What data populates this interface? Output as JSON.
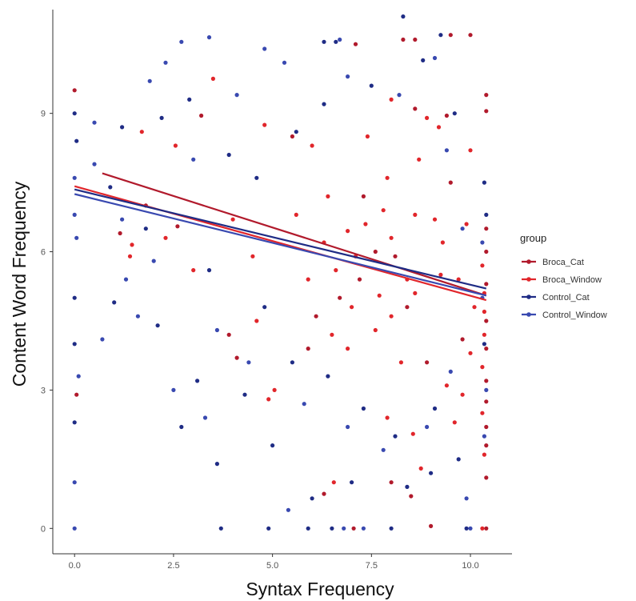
{
  "chart_data": {
    "type": "scatter",
    "title": "",
    "xlabel": "Syntax Frequency",
    "ylabel": "Content Word Frequency",
    "xlim": [
      -0.55,
      11.05
    ],
    "ylim": [
      -0.55,
      11.25
    ],
    "x_ticks": [
      "0.0",
      "2.5",
      "5.0",
      "7.5",
      "10.0"
    ],
    "y_ticks": [
      "0",
      "3",
      "6",
      "9"
    ],
    "grid": false,
    "legend": {
      "title": "group",
      "placement": "right"
    },
    "series": [
      {
        "name": "Broca_Cat",
        "color": "#b11a2c",
        "fit": {
          "x": [
            0.7,
            10.4
          ],
          "y": [
            7.7,
            5.05
          ]
        },
        "points": [
          [
            8.6,
            10.6
          ],
          [
            9.5,
            10.7
          ],
          [
            10.0,
            10.7
          ],
          [
            7.1,
            10.5
          ],
          [
            8.3,
            10.6
          ],
          [
            10.4,
            9.4
          ],
          [
            10.4,
            9.05
          ],
          [
            9.4,
            8.95
          ],
          [
            8.6,
            9.1
          ],
          [
            5.5,
            8.5
          ],
          [
            3.2,
            8.95
          ],
          [
            10.4,
            6.5
          ],
          [
            10.4,
            6.0
          ],
          [
            10.4,
            5.3
          ],
          [
            10.4,
            4.5
          ],
          [
            10.4,
            3.9
          ],
          [
            10.4,
            3.2
          ],
          [
            10.4,
            2.75
          ],
          [
            10.4,
            2.2
          ],
          [
            10.4,
            1.8
          ],
          [
            10.4,
            0.0
          ],
          [
            10.4,
            1.1
          ],
          [
            9.0,
            0.05
          ],
          [
            8.5,
            0.7
          ],
          [
            6.3,
            0.75
          ],
          [
            5.9,
            3.9
          ],
          [
            3.9,
            4.2
          ],
          [
            4.1,
            3.7
          ],
          [
            7.05,
            0.0
          ],
          [
            8.0,
            1.0
          ],
          [
            1.15,
            6.4
          ],
          [
            1.8,
            7.0
          ],
          [
            0.05,
            2.9
          ],
          [
            0.0,
            9.5
          ],
          [
            2.6,
            6.55
          ],
          [
            7.6,
            6.0
          ],
          [
            7.2,
            5.4
          ],
          [
            8.4,
            4.8
          ],
          [
            6.7,
            5.0
          ],
          [
            9.5,
            7.5
          ],
          [
            8.9,
            3.6
          ],
          [
            7.3,
            7.2
          ],
          [
            6.1,
            4.6
          ],
          [
            8.1,
            5.9
          ],
          [
            9.8,
            4.1
          ]
        ]
      },
      {
        "name": "Broca_Window",
        "color": "#e1262b",
        "fit": {
          "x": [
            0.0,
            10.4
          ],
          "y": [
            7.42,
            4.95
          ]
        },
        "points": [
          [
            3.5,
            9.75
          ],
          [
            4.8,
            8.75
          ],
          [
            1.7,
            8.6
          ],
          [
            2.55,
            8.3
          ],
          [
            1.4,
            5.9
          ],
          [
            1.45,
            6.15
          ],
          [
            5.6,
            6.8
          ],
          [
            8.9,
            8.9
          ],
          [
            9.2,
            8.7
          ],
          [
            6.3,
            6.2
          ],
          [
            7.1,
            5.9
          ],
          [
            6.9,
            6.45
          ],
          [
            8.0,
            6.3
          ],
          [
            8.6,
            5.1
          ],
          [
            9.25,
            5.5
          ],
          [
            10.3,
            5.7
          ],
          [
            10.35,
            5.1
          ],
          [
            10.35,
            4.7
          ],
          [
            10.35,
            4.2
          ],
          [
            10.3,
            3.5
          ],
          [
            10.3,
            2.5
          ],
          [
            10.35,
            1.6
          ],
          [
            10.3,
            0.0
          ],
          [
            5.05,
            3.0
          ],
          [
            4.9,
            2.8
          ],
          [
            4.6,
            4.5
          ],
          [
            6.9,
            3.9
          ],
          [
            7.6,
            4.3
          ],
          [
            8.0,
            4.6
          ],
          [
            8.4,
            5.4
          ],
          [
            9.6,
            2.3
          ],
          [
            10.1,
            4.8
          ],
          [
            6.4,
            7.2
          ],
          [
            7.9,
            7.6
          ],
          [
            8.7,
            8.0
          ],
          [
            10.0,
            8.2
          ],
          [
            9.9,
            6.6
          ],
          [
            9.1,
            6.7
          ],
          [
            5.9,
            5.4
          ],
          [
            6.6,
            5.6
          ],
          [
            7.35,
            6.6
          ],
          [
            7.7,
            5.05
          ],
          [
            8.25,
            3.6
          ],
          [
            8.55,
            2.05
          ],
          [
            9.4,
            3.1
          ],
          [
            9.8,
            2.9
          ],
          [
            3.0,
            5.6
          ],
          [
            2.3,
            6.3
          ],
          [
            4.0,
            6.7
          ],
          [
            4.5,
            5.9
          ],
          [
            6.5,
            4.2
          ],
          [
            7.0,
            4.8
          ],
          [
            7.8,
            6.9
          ],
          [
            8.6,
            6.8
          ],
          [
            9.3,
            6.2
          ],
          [
            9.7,
            5.4
          ],
          [
            10.0,
            3.8
          ],
          [
            6.0,
            8.3
          ],
          [
            7.4,
            8.5
          ],
          [
            8.0,
            9.3
          ],
          [
            6.55,
            1.0
          ],
          [
            7.9,
            2.4
          ],
          [
            8.75,
            1.3
          ]
        ]
      },
      {
        "name": "Control_Cat",
        "color": "#1f2c85",
        "fit": {
          "x": [
            0.0,
            10.4
          ],
          "y": [
            7.35,
            5.2
          ]
        },
        "points": [
          [
            8.3,
            11.1
          ],
          [
            6.3,
            10.55
          ],
          [
            6.6,
            10.55
          ],
          [
            9.25,
            10.7
          ],
          [
            3.7,
            0.0
          ],
          [
            4.9,
            0.0
          ],
          [
            5.9,
            0.0
          ],
          [
            6.5,
            0.0
          ],
          [
            8.0,
            0.0
          ],
          [
            9.9,
            0.0
          ],
          [
            3.6,
            1.4
          ],
          [
            2.7,
            2.2
          ],
          [
            0.0,
            2.3
          ],
          [
            0.05,
            8.4
          ],
          [
            0.0,
            9.0
          ],
          [
            0.0,
            5.0
          ],
          [
            0.0,
            4.0
          ],
          [
            1.0,
            4.9
          ],
          [
            2.1,
            4.4
          ],
          [
            3.1,
            3.2
          ],
          [
            4.3,
            2.9
          ],
          [
            5.0,
            1.8
          ],
          [
            6.0,
            0.65
          ],
          [
            7.0,
            1.0
          ],
          [
            8.4,
            0.9
          ],
          [
            9.0,
            1.2
          ],
          [
            9.7,
            1.5
          ],
          [
            1.2,
            8.7
          ],
          [
            2.2,
            8.9
          ],
          [
            2.9,
            9.3
          ],
          [
            3.9,
            8.1
          ],
          [
            4.6,
            7.6
          ],
          [
            5.6,
            8.6
          ],
          [
            6.3,
            9.2
          ],
          [
            7.5,
            9.6
          ],
          [
            8.8,
            10.15
          ],
          [
            9.6,
            9.0
          ],
          [
            10.35,
            7.5
          ],
          [
            10.4,
            6.8
          ],
          [
            10.35,
            4.0
          ],
          [
            9.1,
            2.6
          ],
          [
            8.1,
            2.0
          ],
          [
            7.3,
            2.6
          ],
          [
            6.4,
            3.3
          ],
          [
            5.5,
            3.6
          ],
          [
            4.8,
            4.8
          ],
          [
            3.4,
            5.6
          ],
          [
            1.8,
            6.5
          ],
          [
            0.9,
            7.4
          ]
        ]
      },
      {
        "name": "Control_Window",
        "color": "#3949b0",
        "fit": {
          "x": [
            0.0,
            10.4
          ],
          "y": [
            7.25,
            5.05
          ]
        },
        "points": [
          [
            2.7,
            10.55
          ],
          [
            3.4,
            10.65
          ],
          [
            2.3,
            10.1
          ],
          [
            4.8,
            10.4
          ],
          [
            9.1,
            10.2
          ],
          [
            6.7,
            10.6
          ],
          [
            0.0,
            6.8
          ],
          [
            0.0,
            7.6
          ],
          [
            0.05,
            6.3
          ],
          [
            0.0,
            0.0
          ],
          [
            0.0,
            1.0
          ],
          [
            0.1,
            3.3
          ],
          [
            10.4,
            3.0
          ],
          [
            10.35,
            2.0
          ],
          [
            9.9,
            0.65
          ],
          [
            10.0,
            0.0
          ],
          [
            7.3,
            0.0
          ],
          [
            6.8,
            0.0
          ],
          [
            5.4,
            0.4
          ],
          [
            1.3,
            5.4
          ],
          [
            1.6,
            4.6
          ],
          [
            2.5,
            3.0
          ],
          [
            3.3,
            2.4
          ],
          [
            0.7,
            4.1
          ],
          [
            0.5,
            8.8
          ],
          [
            1.9,
            9.7
          ],
          [
            3.0,
            8.0
          ],
          [
            4.1,
            9.4
          ],
          [
            5.3,
            10.1
          ],
          [
            6.9,
            9.8
          ],
          [
            8.2,
            9.4
          ],
          [
            9.4,
            8.2
          ],
          [
            9.8,
            6.5
          ],
          [
            10.3,
            6.2
          ],
          [
            10.3,
            5.0
          ],
          [
            9.5,
            3.4
          ],
          [
            8.9,
            2.2
          ],
          [
            7.8,
            1.7
          ],
          [
            6.9,
            2.2
          ],
          [
            5.8,
            2.7
          ],
          [
            4.4,
            3.6
          ],
          [
            3.6,
            4.3
          ],
          [
            2.0,
            5.8
          ],
          [
            1.2,
            6.7
          ],
          [
            0.5,
            7.9
          ]
        ]
      }
    ]
  }
}
